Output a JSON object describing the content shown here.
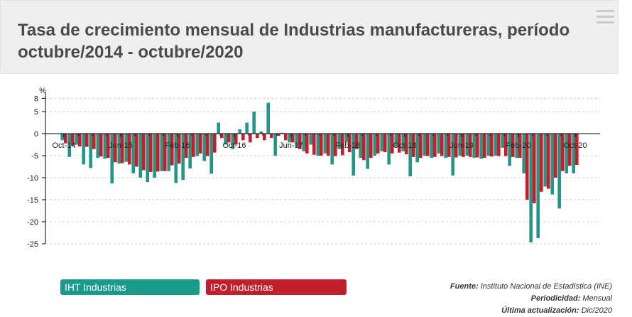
{
  "header": {
    "title": "Tasa de crecimiento mensual de Industrias manufactureras, período octubre/2014 - octubre/2020"
  },
  "legend": {
    "iht_label": "IHT Industrias manufactureras",
    "ipo_label": "IPO Industrias manufactureras"
  },
  "notes": {
    "fuente_label": "Fuente:",
    "fuente_value": "Instituto Nacional de Estadística (INE)",
    "periodicidad_label": "Periodicidad:",
    "periodicidad_value": "Mensual",
    "actualizacion_label": "Última actualización:",
    "actualizacion_value": "Dic/2020"
  },
  "chart_data": {
    "type": "bar",
    "ylabel": "%",
    "ylim": [
      -25,
      8
    ],
    "yticks": [
      8,
      5,
      0,
      -5,
      -10,
      -15,
      -20,
      -25
    ],
    "x_tick_labels": [
      {
        "label": "Oct-14",
        "index": 0
      },
      {
        "label": "Jun-15",
        "index": 8
      },
      {
        "label": "Feb-16",
        "index": 16
      },
      {
        "label": "Oct-16",
        "index": 24
      },
      {
        "label": "Jun-17",
        "index": 32
      },
      {
        "label": "Feb-18",
        "index": 40
      },
      {
        "label": "Oct-18",
        "index": 48
      },
      {
        "label": "Jun-19",
        "index": 56
      },
      {
        "label": "Feb-20",
        "index": 64
      },
      {
        "label": "Oct-20",
        "index": 72
      }
    ],
    "series": [
      {
        "name": "IHT Industrias manufactureras",
        "color": "#1a9a8b",
        "values": [
          -1.5,
          -5.3,
          -2.5,
          -7,
          -7.8,
          -5.5,
          -5.7,
          -11.3,
          -6.8,
          -6.4,
          -9,
          -10,
          -11,
          -10,
          -8.5,
          -8.5,
          -11.2,
          -10.5,
          -7.9,
          -5.1,
          -6.2,
          -9.1,
          2.5,
          -2.5,
          -3.5,
          1,
          2.5,
          5,
          0.5,
          7,
          -5,
          0.2,
          -2,
          -3,
          -4,
          -2.5,
          -5,
          -4.5,
          -7,
          -3.5,
          -2,
          -9.5,
          -5.5,
          -8,
          -5,
          -4,
          -7,
          -3,
          -4,
          -9.7,
          -6.5,
          -5,
          -5.5,
          -4.5,
          -5.5,
          -9.5,
          -5,
          -5,
          -5.5,
          -5.7,
          -5,
          -5,
          -3.2,
          -7.3,
          -5.5,
          -9,
          -24.7,
          -23.7,
          -12,
          -13.8,
          -17,
          -9,
          -9
        ]
      },
      {
        "name": "IPO Industrias manufactureras",
        "color": "#c0202b",
        "values": [
          -2.2,
          -2.7,
          -2.9,
          -3,
          -3.5,
          -5.2,
          -5.5,
          -6.5,
          -6.7,
          -7,
          -7.5,
          -8.3,
          -8.7,
          -8.6,
          -8.5,
          -7.2,
          -6.8,
          -5.5,
          -5.3,
          -4.5,
          -5.1,
          -4.3,
          -1,
          -2,
          -2.5,
          -1.5,
          -2,
          -1,
          -1.5,
          -1,
          -0.5,
          -1.5,
          -2,
          -3.5,
          -4.5,
          -4.8,
          -5,
          -5,
          -5.1,
          -4.9,
          -4.2,
          -3.5,
          -6,
          -5.5,
          -4.5,
          -4.2,
          -4.5,
          -4.3,
          -4.7,
          -5.3,
          -5.5,
          -5.1,
          -5.3,
          -5.1,
          -5.3,
          -5.4,
          -5.3,
          -5.3,
          -5.4,
          -5.5,
          -5.2,
          -5.1,
          -5.1,
          -5.3,
          -5.5,
          -15,
          -15.8,
          -13.2,
          -12.5,
          -10,
          -8.5,
          -7.3,
          -7.1
        ]
      }
    ]
  }
}
